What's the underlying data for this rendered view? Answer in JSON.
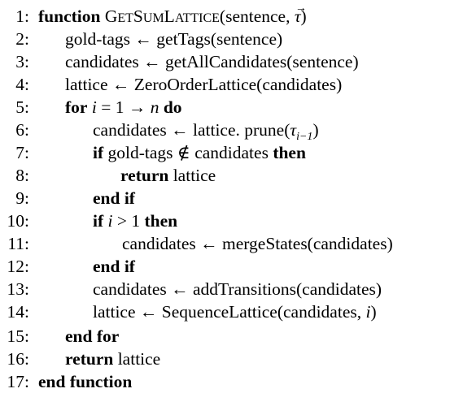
{
  "algorithm": {
    "lines": [
      {
        "num": "1:",
        "kw_function": "function",
        "name_first": "G",
        "name_rest": "ET",
        "name_s": "S",
        "name_um": "UM",
        "name_l": "L",
        "name_attice": "ATTICE",
        "args_open": "(sentence, ",
        "tau_vec": "τ",
        "arrow_glyph": "→",
        "args_close": ")"
      },
      {
        "num": "2:",
        "lhs": "gold-tags",
        "arrow": "←",
        "rhs": "getTags(sentence)"
      },
      {
        "num": "3:",
        "lhs": "candidates",
        "arrow": "←",
        "rhs": "getAllCandidates(sentence)"
      },
      {
        "num": "4:",
        "lhs": "lattice",
        "arrow": "←",
        "rhs": "ZeroOrderLattice(candidates)"
      },
      {
        "num": "5:",
        "kw_for": "for",
        "var": "i",
        "eq": "= 1 →",
        "n": "n",
        "kw_do": "do"
      },
      {
        "num": "6:",
        "lhs": "candidates",
        "arrow": "←",
        "rhs_a": "lattice. prune(",
        "tau": "τ",
        "sub": "i−1",
        "rhs_b": ")"
      },
      {
        "num": "7:",
        "kw_if": "if",
        "cond": "gold-tags ∉ candidates",
        "kw_then": "then"
      },
      {
        "num": "8:",
        "kw_return": "return",
        "value": "lattice"
      },
      {
        "num": "9:",
        "kw_endif": "end if"
      },
      {
        "num": "10:",
        "kw_if": "if",
        "var": "i",
        "cond": "> 1",
        "kw_then": "then"
      },
      {
        "num": "11:",
        "lhs": "candidates",
        "arrow": "←",
        "rhs": "mergeStates(candidates)"
      },
      {
        "num": "12:",
        "kw_endif": "end if"
      },
      {
        "num": "13:",
        "lhs": "candidates",
        "arrow": "←",
        "rhs": "addTransitions(candidates)"
      },
      {
        "num": "14:",
        "lhs": "lattice",
        "arrow": "←",
        "rhs_a": "SequenceLattice(candidates, ",
        "var": "i",
        "rhs_b": ")"
      },
      {
        "num": "15:",
        "kw_endfor": "end for"
      },
      {
        "num": "16:",
        "kw_return": "return",
        "value": "lattice"
      },
      {
        "num": "17:",
        "kw_endfunction": "end function"
      }
    ]
  }
}
